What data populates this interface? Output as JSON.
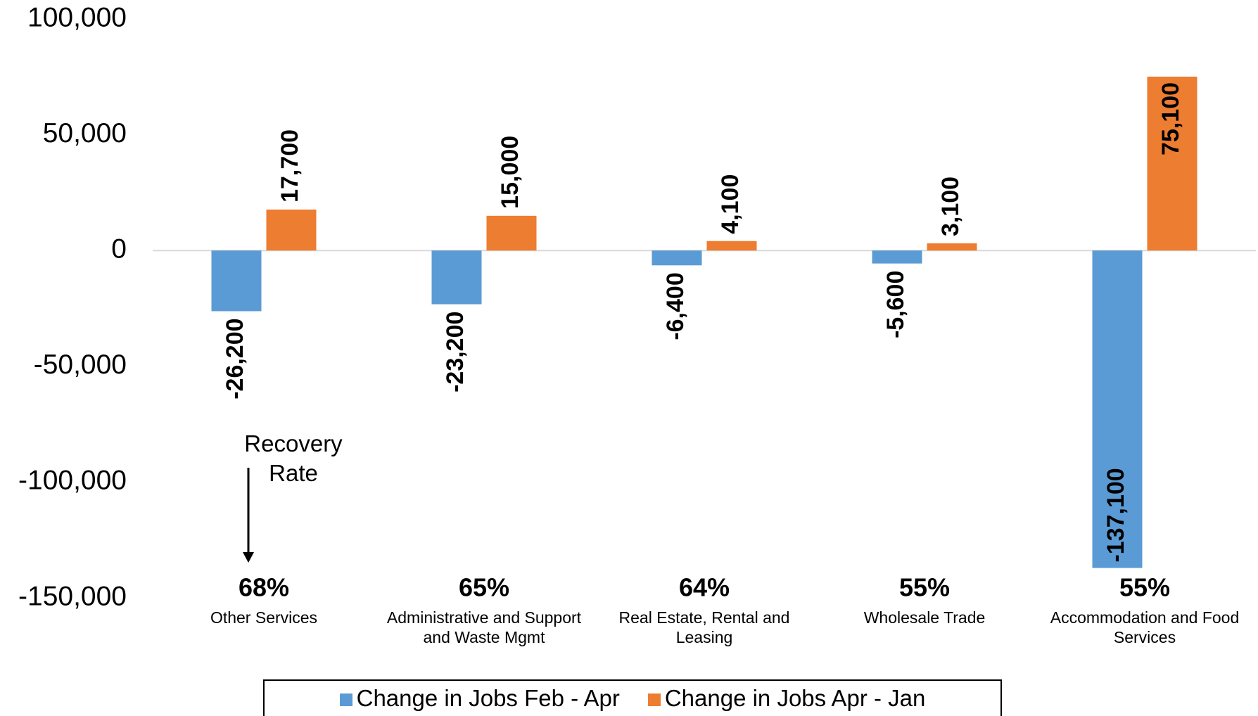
{
  "chart_data": {
    "type": "bar",
    "categories": [
      "Other Services",
      "Administrative and Support and Waste Mgmt",
      "Real Estate, Rental and Leasing",
      "Wholesale Trade",
      "Accommodation and Food Services"
    ],
    "series": [
      {
        "name": "Change in Jobs Feb - Apr",
        "color": "#5b9bd5",
        "values": [
          -26200,
          -23200,
          -6400,
          -5600,
          -137100
        ]
      },
      {
        "name": "Change in Jobs Apr - Jan",
        "color": "#ed7d31",
        "values": [
          17700,
          15000,
          4100,
          3100,
          75100
        ]
      }
    ],
    "recovery_rates": [
      "68%",
      "65%",
      "64%",
      "55%",
      "55%"
    ],
    "annotation": "Recovery Rate",
    "ylim": [
      -150000,
      100000
    ],
    "yticks": [
      {
        "value": -150000,
        "label": "-150,000"
      },
      {
        "value": -100000,
        "label": "-100,000"
      },
      {
        "value": -50000,
        "label": "-50,000"
      },
      {
        "value": 0,
        "label": "0"
      },
      {
        "value": 50000,
        "label": "50,000"
      },
      {
        "value": 100000,
        "label": "100,000"
      }
    ],
    "grid": false,
    "legend": "bottom"
  }
}
